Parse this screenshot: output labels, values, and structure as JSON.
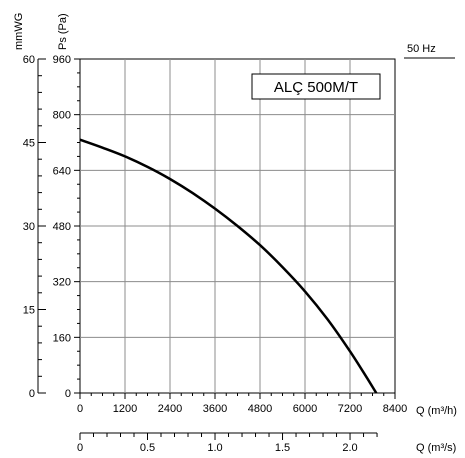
{
  "chart_data": {
    "type": "line",
    "frequency": "50 Hz",
    "model": "ALÇ 500M/T",
    "y_axis_pa": {
      "label": "Ps (Pa)",
      "ticks": [
        "0",
        "160",
        "320",
        "480",
        "640",
        "800",
        "960"
      ],
      "ylim": [
        0,
        960
      ]
    },
    "y_axis_mmwg": {
      "label": "mmWG",
      "ticks": [
        "0",
        "15",
        "30",
        "45",
        "60"
      ],
      "ylim": [
        0,
        60
      ]
    },
    "x_axis_m3h": {
      "label": "Q (m³/h)",
      "ticks": [
        "0",
        "1200",
        "2400",
        "3600",
        "4800",
        "6000",
        "7200",
        "8400"
      ],
      "xlim": [
        0,
        8400
      ]
    },
    "x_axis_m3s": {
      "label": "Q (m³/s)",
      "ticks": [
        "0",
        "0.5",
        "1.0",
        "1.5",
        "2.0"
      ],
      "xlim": [
        0,
        2.333
      ]
    },
    "grid": true,
    "series": [
      {
        "x": [
          0,
          600,
          1200,
          1800,
          2400,
          3000,
          3600,
          4200,
          4800,
          5400,
          6000,
          6600,
          7200,
          7700,
          7900
        ],
        "y": [
          728,
          705,
          680,
          650,
          615,
          575,
          530,
          480,
          425,
          362,
          292,
          212,
          120,
          35,
          0
        ]
      }
    ]
  }
}
